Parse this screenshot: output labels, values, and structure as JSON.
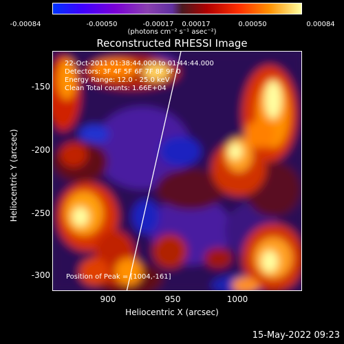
{
  "colorbar": {
    "ticks": [
      "-0.00084",
      "-0.00050",
      "-0.00017",
      "0.00017",
      "0.00050",
      "0.00084"
    ],
    "units": "(photons cm⁻² s⁻¹ asec⁻²)"
  },
  "title": "Reconstructed RHESSI Image",
  "info": {
    "line1": "22-Oct-2011 01:38:44.000 to 01:44:44.000",
    "line2": "Detectors: 3F 4F 5F 6F 7F 8F 9F 0",
    "line3": "Energy Range: 12.0 - 25.0 keV",
    "line4": "Clean    Total counts: 1.66E+04",
    "peak": "Position of Peak = [1004,-161]"
  },
  "axes": {
    "xlabel": "Heliocentric X (arcsec)",
    "ylabel": "Heliocentric Y (arcsec)",
    "xticks": [
      "900",
      "950",
      "1000"
    ],
    "yticks": [
      "-150",
      "-200",
      "-250",
      "-300"
    ]
  },
  "timestamp": "15-May-2022 09:23",
  "colors": {
    "background": "#000000",
    "limb": "#ffffff"
  }
}
